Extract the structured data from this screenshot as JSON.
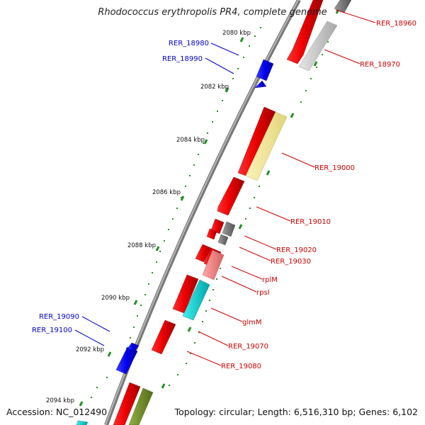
{
  "header": {
    "title": "Rhodococcus erythropolis PR4, complete genome"
  },
  "footer": {
    "accession": "Accession: NC_012490",
    "summary": "Topology: circular; Length: 6,516,310 bp; Genes: 6,102"
  },
  "colors": {
    "backbone": "#888888",
    "tick": "#1f8f1f",
    "plus_strand_label": "#0000cc",
    "minus_strand_label": "#cc0000"
  },
  "scale": {
    "unit": "kbp",
    "labels": [
      "2080 kbp",
      "2082 kbp",
      "2084 kbp",
      "2086 kbp",
      "2088 kbp",
      "2090 kbp",
      "2092 kbp",
      "2094 kbp"
    ]
  },
  "genes": [
    {
      "id": "RER_18960",
      "color": "#cc0000"
    },
    {
      "id": "RER_18970",
      "color": "#cc0000"
    },
    {
      "id": "RER_18980",
      "color": "#0000cc"
    },
    {
      "id": "RER_18990",
      "color": "#0000cc"
    },
    {
      "id": "RER_19000",
      "color": "#cc0000"
    },
    {
      "id": "RER_19010",
      "color": "#cc0000"
    },
    {
      "id": "RER_19020",
      "color": "#cc0000"
    },
    {
      "id": "RER_19030",
      "color": "#cc0000"
    },
    {
      "id": "rplM",
      "color": "#cc0000"
    },
    {
      "id": "rpsI",
      "color": "#cc0000"
    },
    {
      "id": "glmM",
      "color": "#cc0000"
    },
    {
      "id": "RER_19070",
      "color": "#cc0000"
    },
    {
      "id": "RER_19080",
      "color": "#cc0000"
    },
    {
      "id": "RER_19090",
      "color": "#0000cc"
    },
    {
      "id": "RER_19100",
      "color": "#0000cc"
    }
  ],
  "feature_colors": [
    "#ff0000",
    "#c8c8c8",
    "#808080",
    "#0000ff",
    "#f0e68c",
    "#f08080",
    "#00ced1",
    "#6b8e23"
  ]
}
